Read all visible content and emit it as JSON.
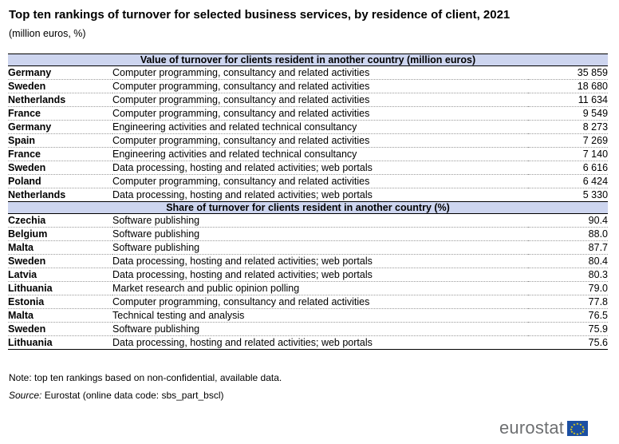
{
  "title": "Top ten rankings of turnover for selected business services, by residence of client, 2021",
  "subtitle": "(million euros, %)",
  "sections": [
    {
      "header": "Value of turnover for clients resident in another country (million euros)",
      "rows": [
        {
          "country": "Germany",
          "activity": "Computer programming, consultancy and related activities",
          "value": "35 859"
        },
        {
          "country": "Sweden",
          "activity": "Computer programming, consultancy and related activities",
          "value": "18 680"
        },
        {
          "country": "Netherlands",
          "activity": "Computer programming, consultancy and related activities",
          "value": "11 634"
        },
        {
          "country": "France",
          "activity": "Computer programming, consultancy and related activities",
          "value": "9 549"
        },
        {
          "country": "Germany",
          "activity": "Engineering activities and related technical consultancy",
          "value": "8 273"
        },
        {
          "country": "Spain",
          "activity": "Computer programming, consultancy and related activities",
          "value": "7 269"
        },
        {
          "country": "France",
          "activity": "Engineering activities and related technical consultancy",
          "value": "7 140"
        },
        {
          "country": "Sweden",
          "activity": "Data processing, hosting and related activities; web portals",
          "value": "6 616"
        },
        {
          "country": "Poland",
          "activity": "Computer programming, consultancy and related activities",
          "value": "6 424"
        },
        {
          "country": "Netherlands",
          "activity": "Data processing, hosting and related activities; web portals",
          "value": "5 330"
        }
      ]
    },
    {
      "header": "Share of turnover for clients resident in another country (%)",
      "rows": [
        {
          "country": "Czechia",
          "activity": "Software publishing",
          "value": "90.4"
        },
        {
          "country": "Belgium",
          "activity": "Software publishing",
          "value": "88.0"
        },
        {
          "country": "Malta",
          "activity": "Software publishing",
          "value": "87.7"
        },
        {
          "country": "Sweden",
          "activity": "Data processing, hosting and related activities; web portals",
          "value": "80.4"
        },
        {
          "country": "Latvia",
          "activity": "Data processing, hosting and related activities; web portals",
          "value": "80.3"
        },
        {
          "country": "Lithuania",
          "activity": "Market research and public opinion polling",
          "value": "79.0"
        },
        {
          "country": "Estonia",
          "activity": "Computer programming, consultancy and related activities",
          "value": "77.8"
        },
        {
          "country": "Malta",
          "activity": "Technical testing and analysis",
          "value": "76.5"
        },
        {
          "country": "Sweden",
          "activity": "Software publishing",
          "value": "75.9"
        },
        {
          "country": "Lithuania",
          "activity": "Data processing, hosting and related activities; web portals",
          "value": "75.6"
        }
      ]
    }
  ],
  "note": "Note: top ten rankings based on non-confidential, available data.",
  "source_label": "Source:",
  "source_text": " Eurostat (online data code: sbs_part_bscl)",
  "logo_text": "eurostat",
  "colors": {
    "section_header_bg": "#cdd5ef",
    "flag_blue": "#1b4fa3",
    "flag_star": "#ffe000",
    "logo_gray": "#6d6f71"
  }
}
